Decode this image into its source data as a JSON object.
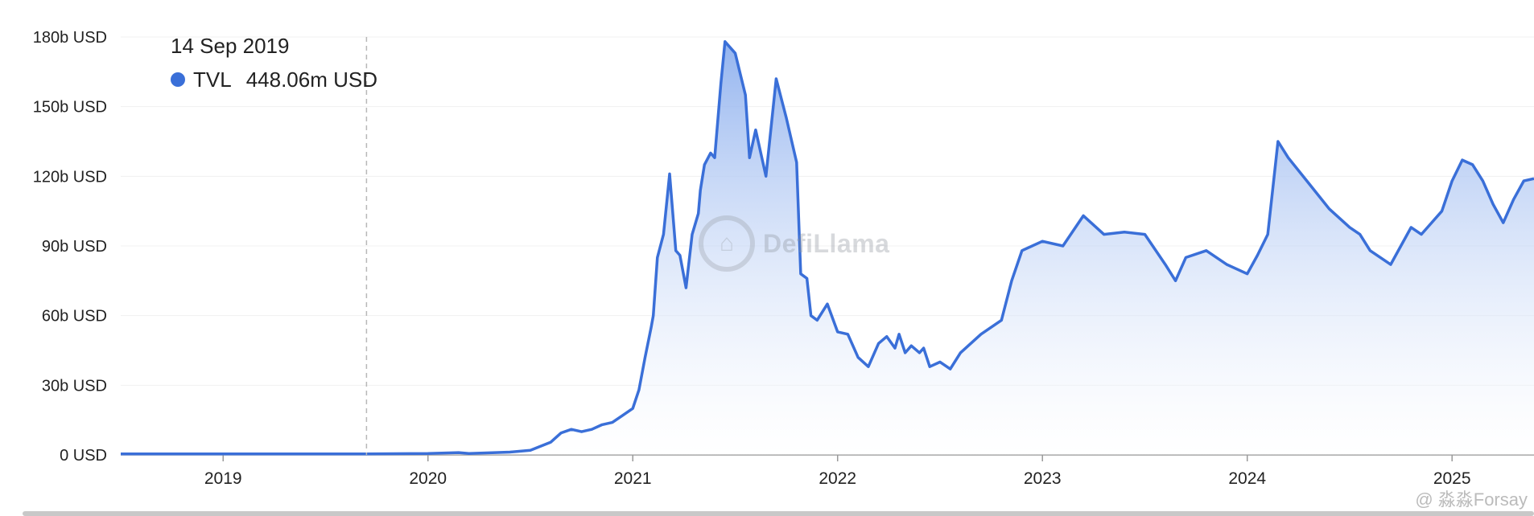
{
  "tooltip": {
    "date": "14 Sep 2019",
    "series_name": "TVL",
    "value": "448.06m USD",
    "dot_color": "#3a6fd8"
  },
  "watermark": {
    "text": "DefiLlama",
    "icon": "llama-logo-icon"
  },
  "credit": {
    "text": "@ 淼淼Forsay"
  },
  "chart_data": {
    "type": "area",
    "x_tick_labels": [
      "2019",
      "2020",
      "2021",
      "2022",
      "2023",
      "2024",
      "2025"
    ],
    "y_tick_labels": [
      "0 USD",
      "30b USD",
      "60b USD",
      "90b USD",
      "120b USD",
      "150b USD",
      "180b USD"
    ],
    "ylim": [
      0,
      180
    ],
    "xlim": [
      2018.5,
      2025.4
    ],
    "y_unit": "b USD",
    "line_color": "#3a6fd8",
    "fill_top_color": "#8eb0ee",
    "fill_bottom_color": "#ffffff",
    "grid": "horizontal",
    "crosshair_x": 2019.7,
    "series": [
      {
        "name": "TVL",
        "x": [
          2018.5,
          2019.0,
          2019.7,
          2020.0,
          2020.15,
          2020.2,
          2020.4,
          2020.5,
          2020.6,
          2020.65,
          2020.7,
          2020.75,
          2020.8,
          2020.85,
          2020.9,
          2020.95,
          2021.0,
          2021.03,
          2021.06,
          2021.09,
          2021.1,
          2021.12,
          2021.15,
          2021.18,
          2021.21,
          2021.23,
          2021.26,
          2021.29,
          2021.32,
          2021.33,
          2021.35,
          2021.38,
          2021.4,
          2021.43,
          2021.45,
          2021.5,
          2021.55,
          2021.57,
          2021.6,
          2021.65,
          2021.7,
          2021.75,
          2021.8,
          2021.82,
          2021.85,
          2021.87,
          2021.9,
          2021.95,
          2022.0,
          2022.05,
          2022.1,
          2022.15,
          2022.2,
          2022.24,
          2022.28,
          2022.3,
          2022.33,
          2022.36,
          2022.4,
          2022.42,
          2022.45,
          2022.5,
          2022.55,
          2022.6,
          2022.7,
          2022.8,
          2022.85,
          2022.9,
          2023.0,
          2023.1,
          2023.2,
          2023.3,
          2023.4,
          2023.5,
          2023.6,
          2023.65,
          2023.7,
          2023.8,
          2023.9,
          2024.0,
          2024.05,
          2024.1,
          2024.15,
          2024.2,
          2024.3,
          2024.4,
          2024.5,
          2024.55,
          2024.6,
          2024.7,
          2024.75,
          2024.8,
          2024.85,
          2024.9,
          2024.95,
          2025.0,
          2025.05,
          2025.1,
          2025.15,
          2025.2,
          2025.25,
          2025.3,
          2025.35,
          2025.4
        ],
        "y": [
          0.4,
          0.4,
          0.45,
          0.6,
          1.0,
          0.6,
          1.2,
          2.0,
          5.5,
          9.5,
          11.0,
          10.0,
          11.0,
          13.0,
          14.0,
          17.0,
          20.0,
          28.0,
          42.0,
          55.0,
          60.0,
          85.0,
          95.0,
          121.0,
          88.0,
          86.0,
          72.0,
          95.0,
          104.0,
          114.0,
          125.0,
          130.0,
          128.0,
          160.0,
          178.0,
          173.0,
          155.0,
          128.0,
          140.0,
          120.0,
          162.0,
          145.0,
          126.0,
          78.0,
          76.0,
          60.0,
          58.0,
          65.0,
          53.0,
          52.0,
          42.0,
          38.0,
          48.0,
          51.0,
          46.0,
          52.0,
          44.0,
          47.0,
          44.0,
          46.0,
          38.0,
          40.0,
          37.0,
          44.0,
          52.0,
          58.0,
          75.0,
          88.0,
          92.0,
          90.0,
          103.0,
          95.0,
          96.0,
          95.0,
          82.0,
          75.0,
          85.0,
          88.0,
          82.0,
          78.0,
          86.0,
          95.0,
          135.0,
          128.0,
          117.0,
          106.0,
          98.0,
          95.0,
          88.0,
          82.0,
          90.0,
          98.0,
          95.0,
          100.0,
          105.0,
          118.0,
          127.0,
          125.0,
          118.0,
          108.0,
          100.0,
          110.0,
          118.0,
          119.0
        ]
      }
    ]
  }
}
